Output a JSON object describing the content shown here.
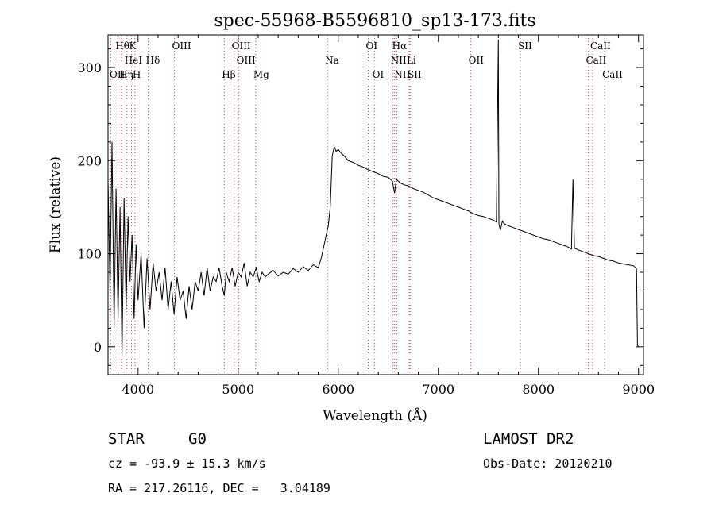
{
  "chart_data": {
    "type": "line",
    "title": "spec-55968-B5596810_sp13-173.fits",
    "xlabel": "Wavelength (Å)",
    "ylabel": "Flux (relative)",
    "xlim": [
      3700,
      9050
    ],
    "ylim": [
      -30,
      335
    ],
    "x_ticks": [
      4000,
      5000,
      6000,
      7000,
      8000,
      9000
    ],
    "y_ticks": [
      0,
      100,
      200,
      300
    ],
    "grid": false,
    "series": [
      {
        "color": "#000000",
        "x": [
          3700,
          3720,
          3740,
          3760,
          3780,
          3800,
          3820,
          3840,
          3860,
          3880,
          3900,
          3920,
          3940,
          3960,
          3980,
          4000,
          4030,
          4060,
          4090,
          4120,
          4150,
          4180,
          4210,
          4240,
          4270,
          4300,
          4330,
          4360,
          4390,
          4420,
          4450,
          4480,
          4510,
          4540,
          4570,
          4600,
          4630,
          4660,
          4690,
          4720,
          4750,
          4780,
          4810,
          4840,
          4861,
          4880,
          4910,
          4940,
          4970,
          5000,
          5030,
          5060,
          5090,
          5120,
          5150,
          5180,
          5210,
          5240,
          5270,
          5300,
          5350,
          5400,
          5450,
          5500,
          5550,
          5600,
          5650,
          5700,
          5750,
          5800,
          5830,
          5860,
          5880,
          5900,
          5920,
          5940,
          5960,
          5980,
          6000,
          6030,
          6060,
          6100,
          6150,
          6200,
          6250,
          6300,
          6350,
          6400,
          6450,
          6500,
          6540,
          6563,
          6580,
          6620,
          6660,
          6700,
          6750,
          6800,
          6850,
          6900,
          6950,
          7000,
          7050,
          7100,
          7150,
          7200,
          7250,
          7300,
          7350,
          7400,
          7450,
          7500,
          7550,
          7580,
          7600,
          7605,
          7620,
          7640,
          7660,
          7700,
          7750,
          7800,
          7850,
          7900,
          7950,
          8000,
          8050,
          8100,
          8150,
          8200,
          8250,
          8300,
          8330,
          8345,
          8360,
          8400,
          8450,
          8500,
          8550,
          8600,
          8650,
          8700,
          8750,
          8800,
          8850,
          8900,
          8950,
          8980,
          8990,
          9000
        ],
        "y": [
          180,
          60,
          220,
          20,
          170,
          30,
          150,
          -10,
          160,
          40,
          140,
          70,
          120,
          30,
          110,
          50,
          100,
          20,
          95,
          40,
          90,
          60,
          80,
          50,
          85,
          40,
          70,
          35,
          75,
          50,
          60,
          30,
          65,
          40,
          70,
          60,
          80,
          55,
          85,
          60,
          75,
          70,
          85,
          65,
          55,
          80,
          70,
          85,
          65,
          80,
          75,
          90,
          65,
          80,
          75,
          85,
          70,
          80,
          75,
          78,
          82,
          76,
          80,
          78,
          84,
          80,
          86,
          82,
          88,
          85,
          95,
          110,
          120,
          130,
          150,
          205,
          215,
          210,
          212,
          208,
          205,
          200,
          198,
          195,
          193,
          190,
          188,
          186,
          183,
          182,
          178,
          165,
          180,
          176,
          174,
          173,
          170,
          168,
          166,
          163,
          160,
          158,
          156,
          154,
          152,
          150,
          148,
          146,
          143,
          141,
          140,
          138,
          136,
          134,
          330,
          132,
          125,
          135,
          132,
          130,
          128,
          126,
          124,
          122,
          120,
          118,
          116,
          115,
          113,
          111,
          109,
          107,
          105,
          180,
          106,
          104,
          102,
          100,
          98,
          97,
          95,
          93,
          92,
          90,
          89,
          88,
          87,
          84,
          2,
          0
        ]
      }
    ],
    "annotations": [
      {
        "label": "Hθ",
        "x": 3798,
        "row": 1
      },
      {
        "label": "K",
        "x": 3934,
        "row": 1
      },
      {
        "label": "HeI",
        "x": 3889,
        "row": 2
      },
      {
        "label": "Hδ",
        "x": 4102,
        "row": 2
      },
      {
        "label": "OII",
        "x": 3727,
        "row": 3
      },
      {
        "label": "Hη",
        "x": 3835,
        "row": 3
      },
      {
        "label": "H",
        "x": 3969,
        "row": 3
      },
      {
        "label": "OIII",
        "x": 4363,
        "row": 1
      },
      {
        "label": "OIII",
        "x": 4959,
        "row": 1
      },
      {
        "label": "OIII",
        "x": 5007,
        "row": 2
      },
      {
        "label": "Hβ",
        "x": 4861,
        "row": 3
      },
      {
        "label": "Mg",
        "x": 5175,
        "row": 3
      },
      {
        "label": "Na",
        "x": 5893,
        "row": 2
      },
      {
        "label": "OI",
        "x": 6300,
        "row": 1
      },
      {
        "label": "OI",
        "x": 6364,
        "row": 3
      },
      {
        "label": "Hα",
        "x": 6563,
        "row": 1
      },
      {
        "label": "NII",
        "x": 6548,
        "row": 2
      },
      {
        "label": "Li",
        "x": 6708,
        "row": 2
      },
      {
        "label": "NII",
        "x": 6584,
        "row": 3
      },
      {
        "label": "SII",
        "x": 6717,
        "row": 3
      },
      {
        "label": "OII",
        "x": 7325,
        "row": 2
      },
      {
        "label": "SII",
        "x": 7820,
        "row": 1
      },
      {
        "label": "CaII",
        "x": 8542,
        "row": 1
      },
      {
        "label": "CaII",
        "x": 8498,
        "row": 2
      },
      {
        "label": "CaII",
        "x": 8662,
        "row": 3
      }
    ],
    "line_markers": [
      3727,
      3798,
      3835,
      3889,
      3934,
      3969,
      4102,
      4363,
      4861,
      4959,
      5007,
      5175,
      5893,
      6300,
      6364,
      6548,
      6563,
      6584,
      6708,
      6717,
      7325,
      7820,
      8498,
      8542,
      8662
    ]
  },
  "footer": {
    "object_type": "STAR",
    "subclass": "G0",
    "survey": "LAMOST DR2",
    "cz": "cz = -93.9 ± 15.3 km/s",
    "obs_date": "Obs-Date: 20120210",
    "coords": "RA = 217.26116, DEC =   3.04189"
  }
}
